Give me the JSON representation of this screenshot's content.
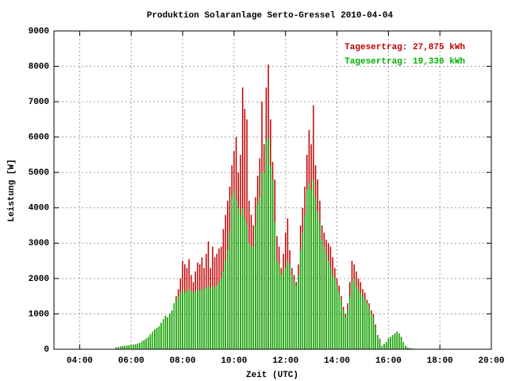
{
  "chart_data": {
    "type": "impulse",
    "title": "Produktion Solaranlage Serto-Gressel 2010-04-04",
    "xlabel": "Zeit (UTC)",
    "ylabel": "Leistung [W]",
    "xlim": [
      "03:00",
      "20:00"
    ],
    "xticks": [
      "04:00",
      "06:00",
      "08:00",
      "10:00",
      "12:00",
      "14:00",
      "16:00",
      "18:00",
      "20:00"
    ],
    "ylim": [
      0,
      9000
    ],
    "yticks": [
      0,
      1000,
      2000,
      3000,
      4000,
      5000,
      6000,
      7000,
      8000,
      9000
    ],
    "grid": true,
    "legend": "upper right",
    "x": [
      "05:00",
      "05:05",
      "05:10",
      "05:15",
      "05:20",
      "05:25",
      "05:30",
      "05:35",
      "05:40",
      "05:45",
      "05:50",
      "05:55",
      "06:00",
      "06:05",
      "06:10",
      "06:15",
      "06:20",
      "06:25",
      "06:30",
      "06:35",
      "06:40",
      "06:45",
      "06:50",
      "06:55",
      "07:00",
      "07:05",
      "07:10",
      "07:15",
      "07:20",
      "07:25",
      "07:30",
      "07:35",
      "07:40",
      "07:45",
      "07:50",
      "07:55",
      "08:00",
      "08:05",
      "08:10",
      "08:15",
      "08:20",
      "08:25",
      "08:30",
      "08:35",
      "08:40",
      "08:45",
      "08:50",
      "08:55",
      "09:00",
      "09:05",
      "09:10",
      "09:15",
      "09:20",
      "09:25",
      "09:30",
      "09:35",
      "09:40",
      "09:45",
      "09:50",
      "09:55",
      "10:00",
      "10:05",
      "10:10",
      "10:15",
      "10:20",
      "10:25",
      "10:30",
      "10:35",
      "10:40",
      "10:45",
      "10:50",
      "10:55",
      "11:00",
      "11:05",
      "11:10",
      "11:15",
      "11:20",
      "11:25",
      "11:30",
      "11:35",
      "11:40",
      "11:45",
      "11:50",
      "11:55",
      "12:00",
      "12:05",
      "12:10",
      "12:15",
      "12:20",
      "12:25",
      "12:30",
      "12:35",
      "12:40",
      "12:45",
      "12:50",
      "12:55",
      "13:00",
      "13:05",
      "13:10",
      "13:15",
      "13:20",
      "13:25",
      "13:30",
      "13:35",
      "13:40",
      "13:45",
      "13:50",
      "13:55",
      "14:00",
      "14:05",
      "14:10",
      "14:15",
      "14:20",
      "14:25",
      "14:30",
      "14:35",
      "14:40",
      "14:45",
      "14:50",
      "14:55",
      "15:00",
      "15:05",
      "15:10",
      "15:15",
      "15:20",
      "15:25",
      "15:30",
      "15:35",
      "15:40",
      "15:45",
      "15:50",
      "15:55",
      "16:00",
      "16:05",
      "16:10",
      "16:15",
      "16:20",
      "16:25",
      "16:30",
      "16:35",
      "16:40",
      "16:45",
      "16:50",
      "16:55"
    ],
    "series": [
      {
        "name": "Tagesertrag: 27,875 kWh",
        "color": "#c00000",
        "values": [
          0,
          0,
          0,
          0,
          0,
          50,
          60,
          80,
          90,
          100,
          100,
          110,
          120,
          130,
          140,
          160,
          180,
          220,
          260,
          300,
          350,
          420,
          500,
          560,
          600,
          650,
          750,
          850,
          950,
          900,
          1000,
          1100,
          1300,
          1500,
          1700,
          2000,
          2500,
          2400,
          2300,
          2550,
          2100,
          1900,
          2200,
          2450,
          2400,
          2600,
          2300,
          2700,
          3050,
          2300,
          2900,
          2600,
          2700,
          2850,
          2900,
          3400,
          3800,
          4200,
          4600,
          5200,
          5600,
          6000,
          5000,
          5500,
          7400,
          6800,
          6500,
          4200,
          3800,
          3500,
          4300,
          4900,
          5400,
          7000,
          5800,
          7400,
          8050,
          6500,
          5300,
          4800,
          3200,
          2900,
          2300,
          2700,
          3300,
          3700,
          2800,
          2300,
          2100,
          1900,
          2400,
          3500,
          4000,
          4600,
          5500,
          6200,
          5800,
          6900,
          5200,
          4800,
          4200,
          3500,
          3300,
          3100,
          3000,
          2900,
          2600,
          2300,
          2000,
          1800,
          1500,
          1200,
          1000,
          1300,
          1900,
          2500,
          2400,
          2200,
          2000,
          1900,
          1700,
          1600,
          1400,
          1300,
          1100,
          1000,
          700,
          400,
          300,
          100,
          150,
          200,
          300,
          350,
          400,
          450,
          500,
          450,
          350,
          200,
          100,
          50,
          30,
          20
        ]
      },
      {
        "name": "Tagesertrag: 19,336 kWh",
        "color": "#00b000",
        "values": [
          0,
          0,
          0,
          0,
          0,
          50,
          60,
          80,
          90,
          100,
          100,
          110,
          120,
          130,
          140,
          160,
          180,
          220,
          260,
          300,
          350,
          420,
          500,
          560,
          600,
          650,
          750,
          850,
          950,
          900,
          1000,
          1100,
          1300,
          1400,
          1500,
          1600,
          1700,
          1600,
          1650,
          1700,
          1650,
          1600,
          1650,
          1700,
          1650,
          1700,
          1700,
          1750,
          1800,
          1700,
          1800,
          1750,
          1800,
          1900,
          2000,
          2200,
          2500,
          2800,
          3300,
          4300,
          4500,
          4200,
          4000,
          3800,
          4000,
          3700,
          3500,
          3000,
          2900,
          2900,
          3500,
          4100,
          4300,
          5000,
          5000,
          5900,
          6000,
          5200,
          4800,
          3600,
          2500,
          2400,
          2100,
          2200,
          2300,
          2500,
          2400,
          2100,
          1900,
          1800,
          2100,
          2800,
          3300,
          3800,
          4500,
          4700,
          4500,
          4800,
          4300,
          3900,
          3600,
          3100,
          2900,
          2700,
          2500,
          2300,
          2100,
          2000,
          1800,
          1600,
          1400,
          1100,
          900,
          1100,
          1500,
          1900,
          2000,
          1800,
          1700,
          1600,
          1500,
          1400,
          1300,
          1200,
          1000,
          900,
          650,
          380,
          280,
          100,
          150,
          200,
          300,
          350,
          400,
          450,
          500,
          450,
          350,
          200,
          100,
          50,
          30,
          20
        ]
      }
    ]
  }
}
